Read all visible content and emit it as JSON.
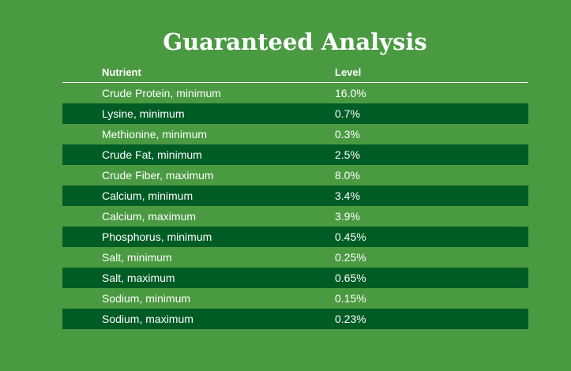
{
  "title": "Guaranteed Analysis",
  "table": {
    "headers": [
      "Nutrient",
      "Level"
    ],
    "rows": [
      {
        "nutrient": "Crude Protein, minimum",
        "level": "16.0%"
      },
      {
        "nutrient": "Lysine, minimum",
        "level": "0.7%"
      },
      {
        "nutrient": "Methionine, minimum",
        "level": "0.3%"
      },
      {
        "nutrient": "Crude Fat, minimum",
        "level": "2.5%"
      },
      {
        "nutrient": "Crude Fiber, maximum",
        "level": "8.0%"
      },
      {
        "nutrient": "Calcium, minimum",
        "level": "3.4%"
      },
      {
        "nutrient": "Calcium, maximum",
        "level": "3.9%"
      },
      {
        "nutrient": "Phosphorus, minimum",
        "level": "0.45%"
      },
      {
        "nutrient": "Salt, minimum",
        "level": "0.25%"
      },
      {
        "nutrient": "Salt, maximum",
        "level": "0.65%"
      },
      {
        "nutrient": "Sodium, minimum",
        "level": "0.15%"
      },
      {
        "nutrient": "Sodium, maximum",
        "level": "0.23%"
      }
    ]
  },
  "colors": {
    "background": "#4a9a42",
    "stripe": "#005c25",
    "text": "#ffffff"
  }
}
